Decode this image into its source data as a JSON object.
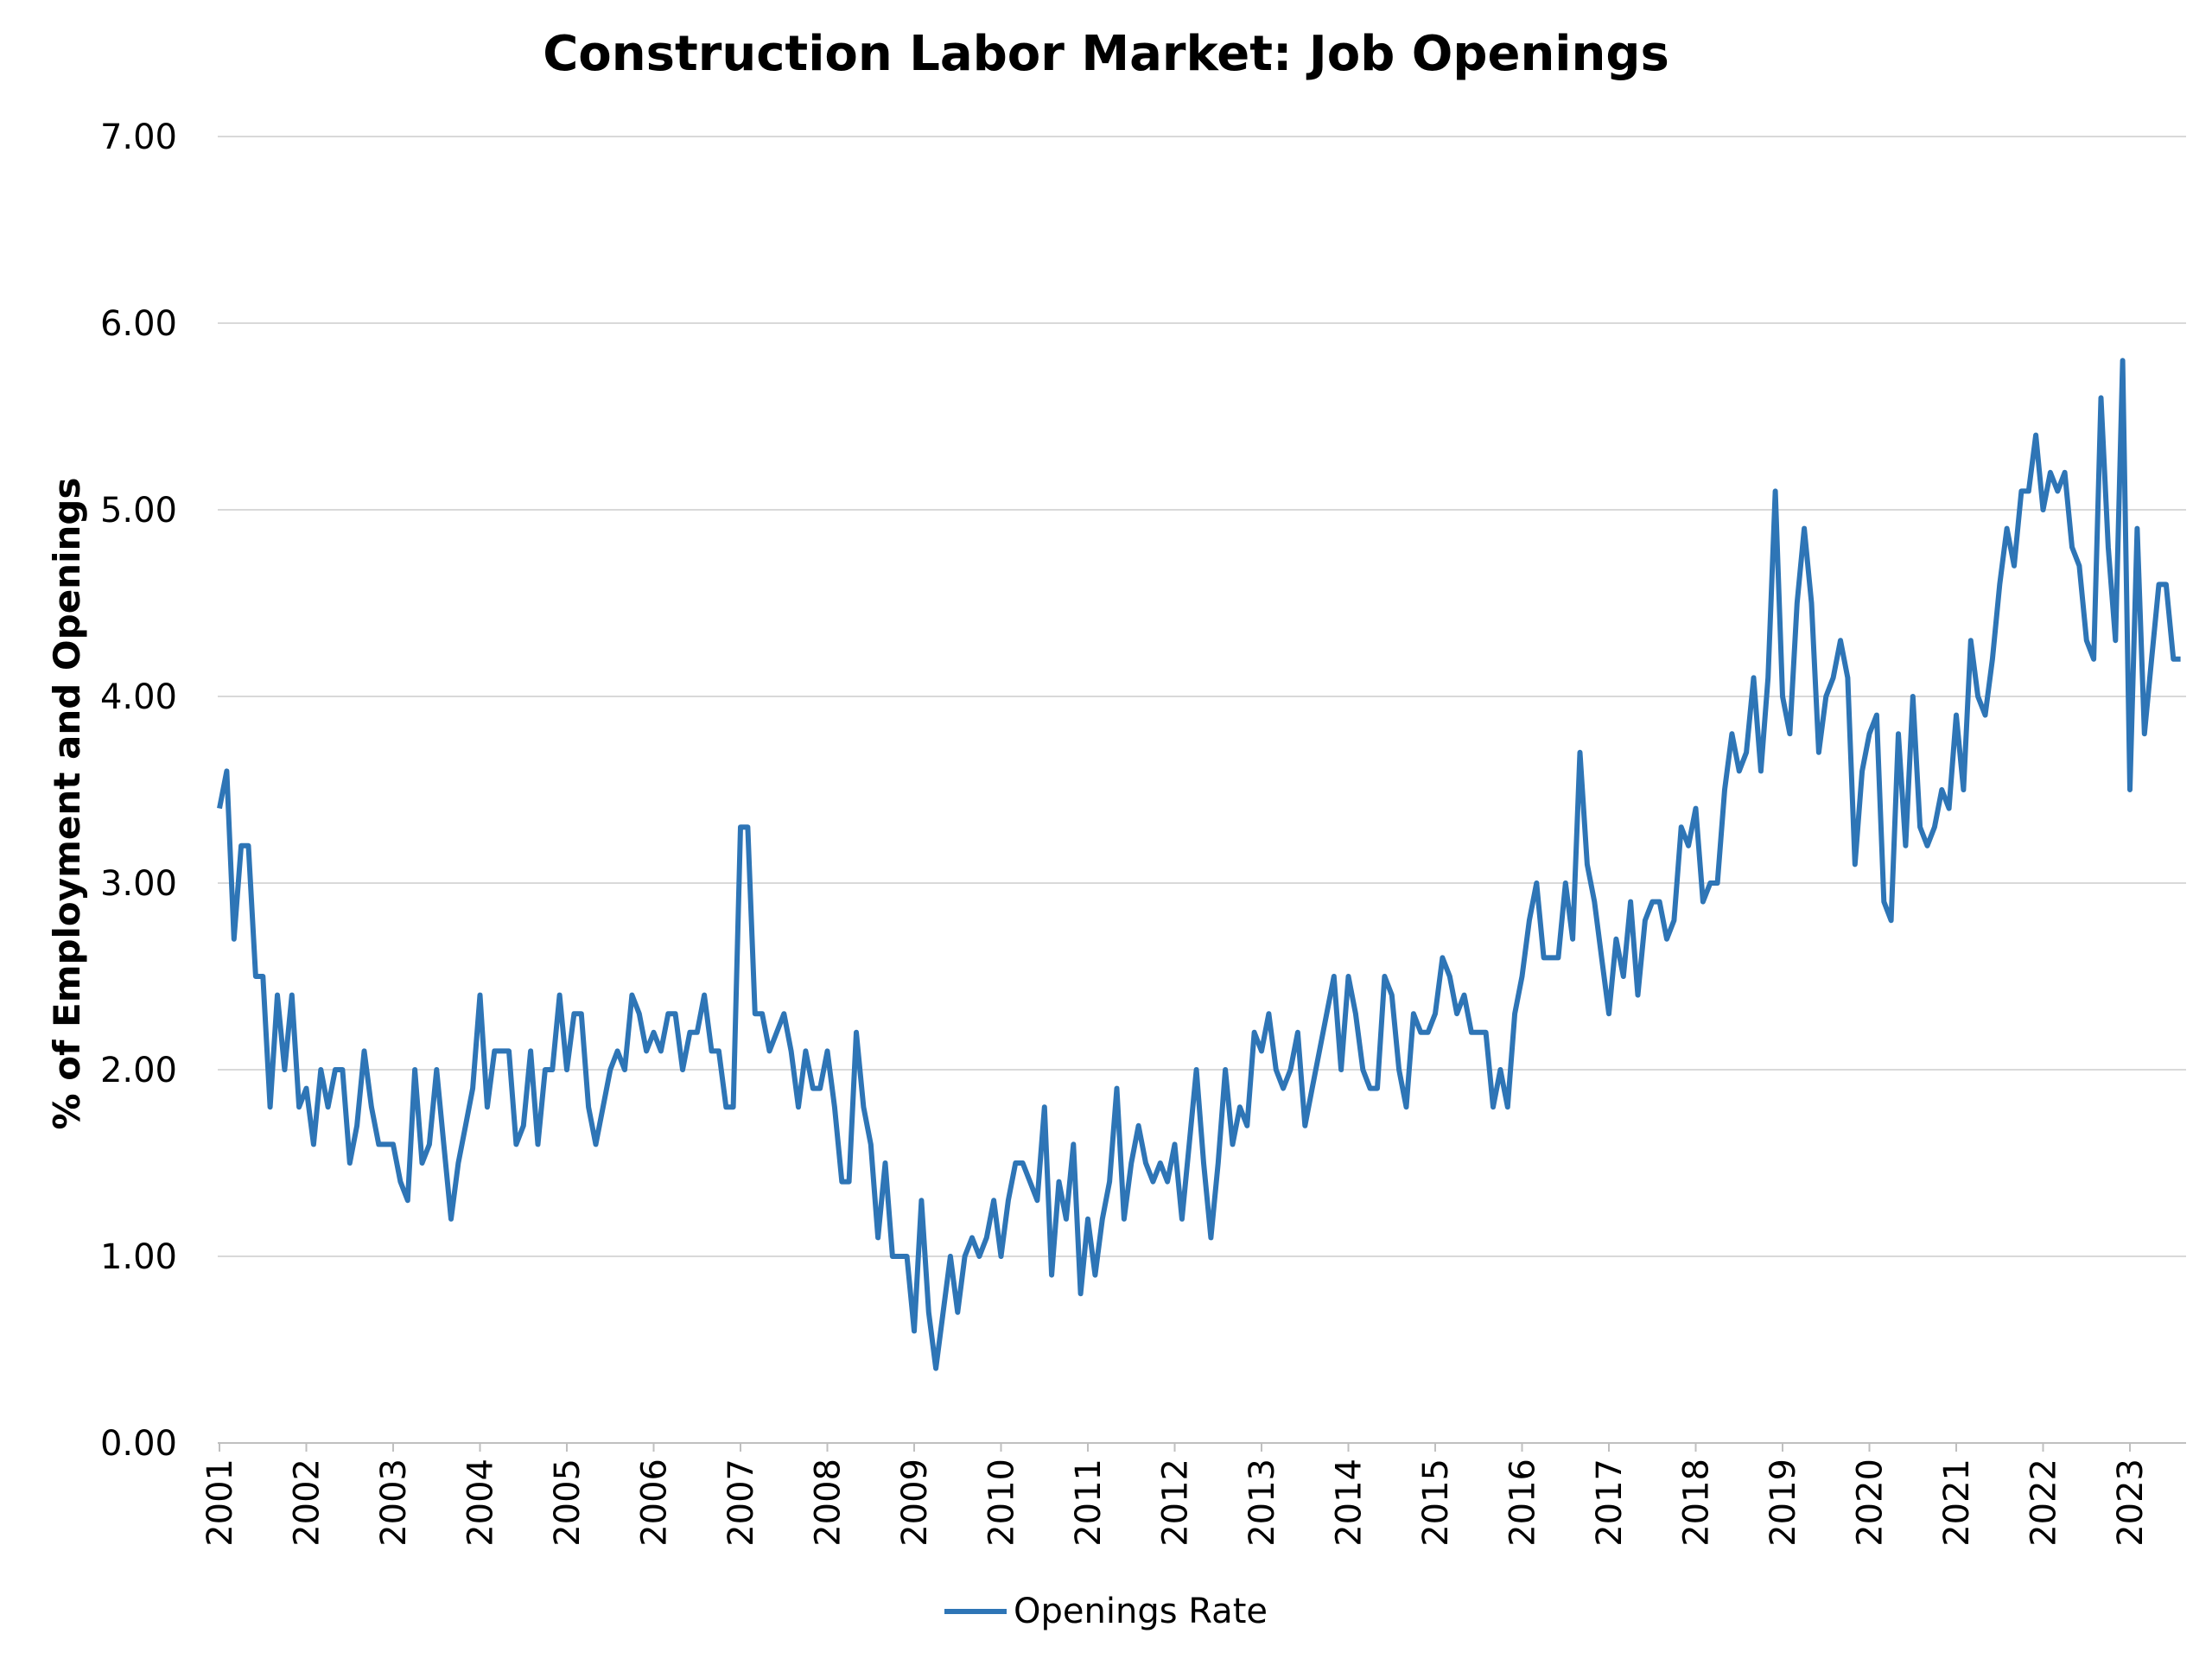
{
  "chart_data": {
    "type": "line",
    "title": "Construction Labor Market: Job Openings",
    "ylabel": "% of Employment and Openings",
    "xlabel": "",
    "ylim": [
      0,
      7
    ],
    "yticks": [
      "0.00",
      "1.00",
      "2.00",
      "3.00",
      "4.00",
      "5.00",
      "6.00",
      "7.00"
    ],
    "xticks": [
      "2001",
      "2002",
      "2003",
      "2004",
      "2005",
      "2006",
      "2007",
      "2008",
      "2009",
      "2010",
      "2011",
      "2012",
      "2013",
      "2014",
      "2015",
      "2016",
      "2017",
      "2018",
      "2019",
      "2020",
      "2021",
      "2022",
      "2023"
    ],
    "x_start": "2001-01",
    "x_frequency": "monthly",
    "grid": true,
    "legend_position": "bottom",
    "series": [
      {
        "name": "Openings Rate",
        "color": "#2e75b6",
        "values": [
          3.4,
          3.6,
          2.7,
          3.2,
          3.2,
          2.5,
          2.5,
          1.8,
          2.4,
          2.0,
          2.4,
          1.8,
          1.9,
          1.6,
          2.0,
          1.8,
          2.0,
          2.0,
          1.5,
          1.7,
          2.1,
          1.8,
          1.6,
          1.6,
          1.6,
          1.4,
          1.3,
          2.0,
          1.5,
          1.6,
          2.0,
          1.6,
          1.2,
          1.5,
          1.7,
          1.9,
          2.4,
          1.8,
          2.1,
          2.1,
          2.1,
          1.6,
          1.7,
          2.1,
          1.6,
          2.0,
          2.0,
          2.4,
          2.0,
          2.3,
          2.3,
          1.8,
          1.6,
          1.8,
          2.0,
          2.1,
          2.0,
          2.4,
          2.3,
          2.1,
          2.2,
          2.1,
          2.3,
          2.3,
          2.0,
          2.2,
          2.2,
          2.4,
          2.1,
          2.1,
          1.8,
          1.8,
          3.3,
          3.3,
          2.3,
          2.3,
          2.1,
          2.2,
          2.3,
          2.1,
          1.8,
          2.1,
          1.9,
          1.9,
          2.1,
          1.8,
          1.4,
          1.4,
          2.2,
          1.8,
          1.6,
          1.1,
          1.5,
          1.0,
          1.0,
          1.0,
          0.6,
          1.3,
          0.7,
          0.4,
          0.7,
          1.0,
          0.7,
          1.0,
          1.1,
          1.0,
          1.1,
          1.3,
          1.0,
          1.3,
          1.5,
          1.5,
          1.4,
          1.3,
          1.8,
          0.9,
          1.4,
          1.2,
          1.6,
          0.8,
          1.2,
          0.9,
          1.2,
          1.4,
          1.9,
          1.2,
          1.5,
          1.7,
          1.5,
          1.4,
          1.5,
          1.4,
          1.6,
          1.2,
          1.6,
          2.0,
          1.5,
          1.1,
          1.5,
          2.0,
          1.6,
          1.8,
          1.7,
          2.2,
          2.1,
          2.3,
          2.0,
          1.9,
          2.0,
          2.2,
          1.7,
          1.9,
          2.1,
          2.3,
          2.5,
          2.0,
          2.5,
          2.3,
          2.0,
          1.9,
          1.9,
          2.5,
          2.4,
          2.0,
          1.8,
          2.3,
          2.2,
          2.2,
          2.3,
          2.6,
          2.5,
          2.3,
          2.4,
          2.2,
          2.2,
          2.2,
          1.8,
          2.0,
          1.8,
          2.3,
          2.5,
          2.8,
          3.0,
          2.6,
          2.6,
          2.6,
          3.0,
          2.7,
          3.7,
          3.1,
          2.9,
          2.6,
          2.3,
          2.7,
          2.5,
          2.9,
          2.4,
          2.8,
          2.9,
          2.9,
          2.7,
          2.8,
          3.3,
          3.2,
          3.4,
          2.9,
          3.0,
          3.0,
          3.5,
          3.8,
          3.6,
          3.7,
          4.1,
          3.6,
          4.1,
          5.1,
          4.0,
          3.8,
          4.5,
          4.9,
          4.5,
          3.7,
          4.0,
          4.1,
          4.3,
          4.1,
          3.1,
          3.6,
          3.8,
          3.9,
          2.9,
          2.8,
          3.8,
          3.2,
          4.0,
          3.3,
          3.2,
          3.3,
          3.5,
          3.4,
          3.9,
          3.5,
          4.3,
          4.0,
          3.9,
          4.2,
          4.6,
          4.9,
          4.7,
          5.1,
          5.1,
          5.4,
          5.0,
          5.2,
          5.1,
          5.2,
          4.8,
          4.7,
          4.3,
          4.2,
          5.6,
          4.8,
          4.3,
          5.8,
          3.5,
          4.9,
          3.8,
          4.2,
          4.6,
          4.6,
          4.2,
          4.2
        ]
      }
    ]
  }
}
